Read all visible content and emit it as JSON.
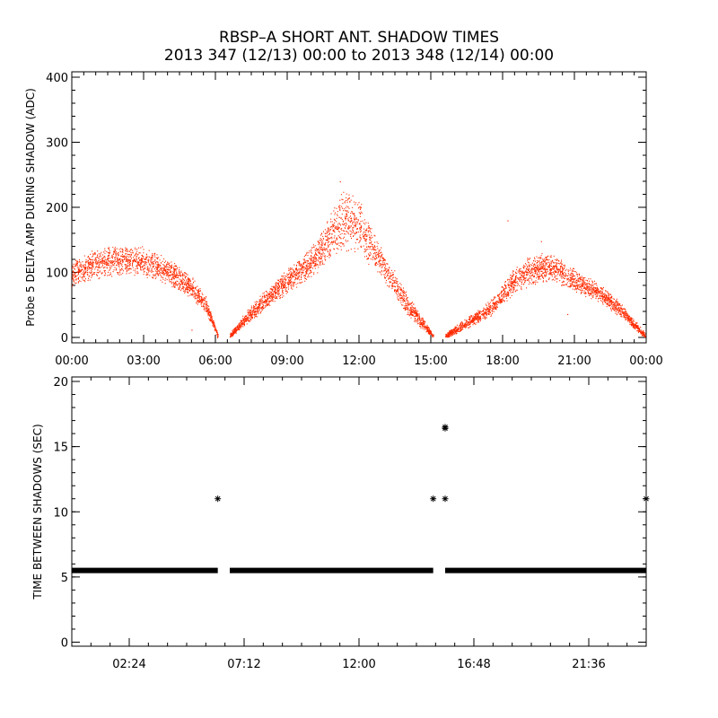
{
  "title_line1": "RBSP–A SHORT ANT. SHADOW TIMES",
  "title_line2": "2013 347 (12/13) 00:00 to 2013 348 (12/14) 00:00",
  "colors": {
    "points_top": "#ff2a00",
    "points_bottom": "#000000",
    "axis": "#000000"
  },
  "chart_data": [
    {
      "type": "scatter",
      "panel": "top",
      "title": "RBSP–A SHORT ANT. SHADOW TIMES",
      "ylabel": "Probe 5 DELTA AMP DURING SHADOW (ADC)",
      "xlabel": "",
      "xunit": "hours",
      "xlim": [
        0,
        24
      ],
      "ylim": [
        0,
        400
      ],
      "xticks": [
        0,
        3,
        6,
        9,
        12,
        15,
        18,
        21,
        24
      ],
      "xtick_labels": [
        "00:00",
        "03:00",
        "06:00",
        "09:00",
        "12:00",
        "15:00",
        "18:00",
        "21:00",
        "00:00"
      ],
      "yticks": [
        0,
        100,
        200,
        300,
        400
      ],
      "ytick_labels": [
        "0",
        "100",
        "200",
        "300",
        "400"
      ],
      "series": [
        {
          "name": "Probe 5 delta amp",
          "description": "dense noisy band of samples",
          "segments": [
            {
              "x": [
                0,
                1,
                2,
                3,
                4,
                5,
                5.6,
                6.1
              ],
              "center": [
                100,
                113,
                120,
                117,
                102,
                78,
                50,
                2
              ],
              "spread": [
                22,
                24,
                26,
                24,
                22,
                18,
                14,
                4
              ]
            },
            {
              "x": [
                6.6,
                7.5,
                8.5,
                9.5,
                10.3,
                11,
                11.5,
                12,
                12.6,
                13.2,
                14,
                14.8,
                15.1
              ],
              "center": [
                3,
                38,
                72,
                100,
                128,
                168,
                185,
                170,
                135,
                98,
                52,
                15,
                2
              ],
              "spread": [
                4,
                14,
                18,
                22,
                28,
                45,
                52,
                45,
                30,
                24,
                18,
                8,
                3
              ]
            },
            {
              "x": [
                15.6,
                16.5,
                17.5,
                18.5,
                19.2,
                20,
                21,
                22,
                23,
                23.95
              ],
              "center": [
                3,
                22,
                45,
                88,
                105,
                110,
                88,
                70,
                40,
                3
              ],
              "spread": [
                4,
                10,
                14,
                20,
                26,
                24,
                18,
                16,
                12,
                4
              ]
            }
          ],
          "outliers": [
            [
              11.2,
              240
            ],
            [
              18.2,
              180
            ],
            [
              19.6,
              148
            ],
            [
              5.0,
              12
            ],
            [
              20.7,
              36
            ]
          ]
        }
      ]
    },
    {
      "type": "scatter",
      "panel": "bottom",
      "ylabel": "TIME BETWEEN SHADOWS (SEC)",
      "xlabel": "",
      "xunit": "hours",
      "xlim": [
        0,
        24
      ],
      "ylim": [
        0,
        20
      ],
      "xticks": [
        2.4,
        7.2,
        12,
        16.8,
        21.6
      ],
      "xtick_labels": [
        "02:24",
        "07:12",
        "12:00",
        "16:48",
        "21:36"
      ],
      "yticks": [
        0,
        5,
        10,
        15,
        20
      ],
      "ytick_labels": [
        "0",
        "5",
        "10",
        "15",
        "20"
      ],
      "series": [
        {
          "name": "Time between shadows",
          "marker": "asterisk",
          "baseline": {
            "y": 5.5,
            "ranges": [
              [
                0,
                6.1
              ],
              [
                6.6,
                15.1
              ],
              [
                15.6,
                24
              ]
            ]
          },
          "points": [
            [
              6.1,
              11
            ],
            [
              15.1,
              11
            ],
            [
              15.6,
              11
            ],
            [
              15.6,
              16.5
            ],
            [
              15.6,
              16.4
            ],
            [
              24,
              11
            ]
          ]
        }
      ]
    }
  ]
}
